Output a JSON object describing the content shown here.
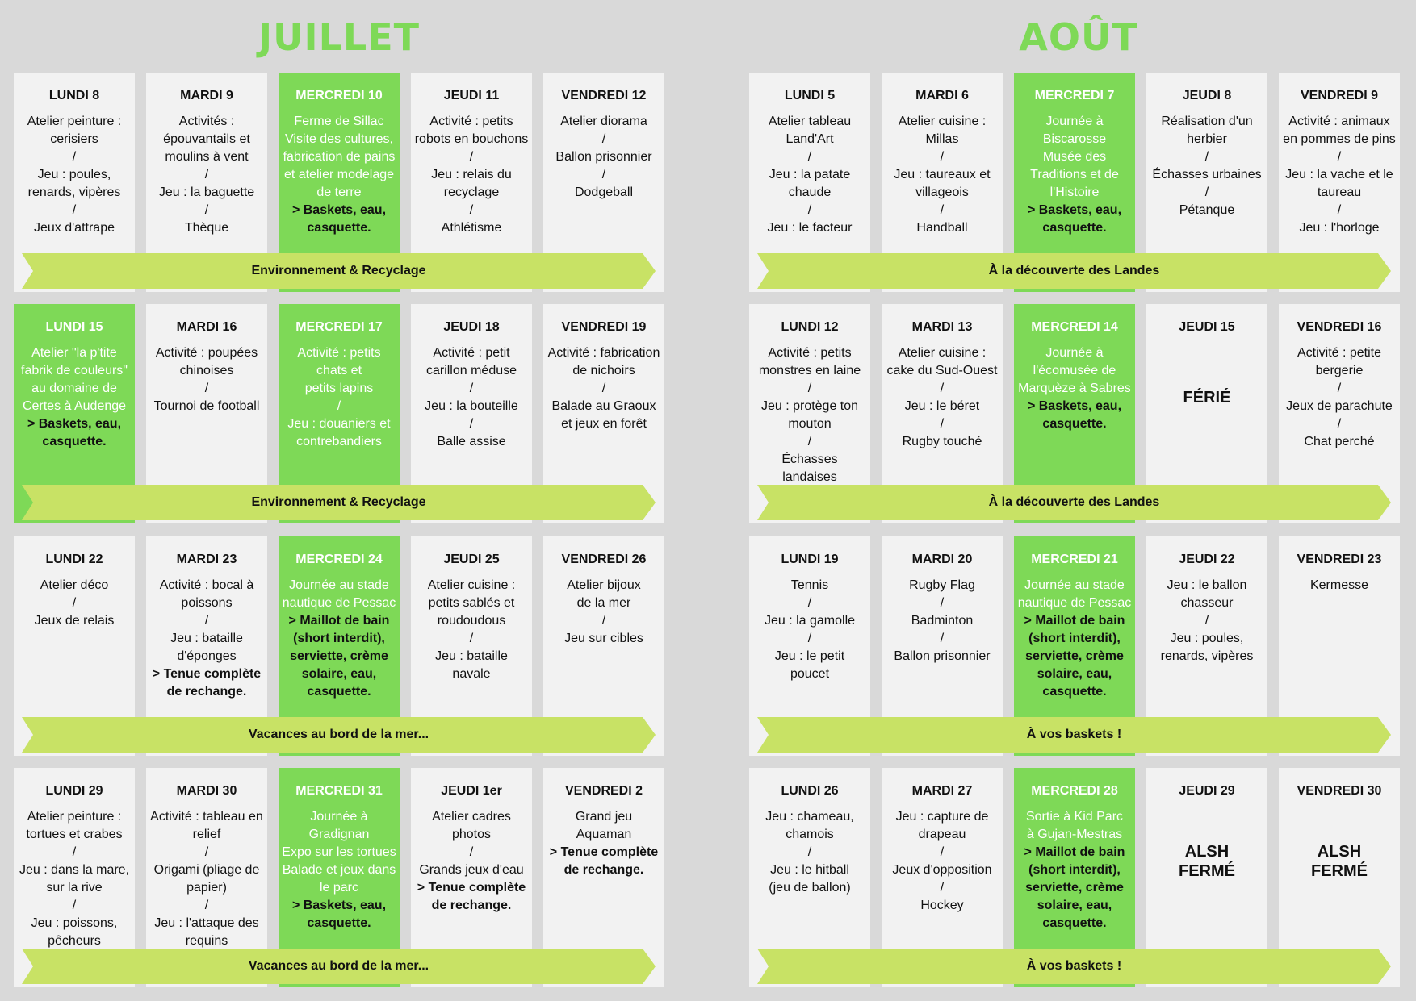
{
  "july": {
    "title": "JUILLET",
    "weeks": [
      {
        "theme": "Environnement & Recyclage",
        "days": [
          {
            "head": "LUNDI 8",
            "body": "Atelier peinture :\ncerisiers\n/\nJeu : poules,\nrenards, vipères\n/\nJeux d'attrape",
            "note": ""
          },
          {
            "head": "MARDI 9",
            "body": "Activités :\népouvantails et\nmoulins à vent\n/\nJeu : la baguette\n/\nThèque",
            "note": ""
          },
          {
            "head": "MERCREDI 10",
            "body": "Ferme de Sillac\nVisite des cultures,\nfabrication de pains\net atelier modelage\nde terre",
            "note": "> Baskets, eau,\ncasquette."
          },
          {
            "head": "JEUDI 11",
            "body": "Activité : petits\nrobots en bouchons\n/\nJeu : relais du\nrecyclage\n/\nAthlétisme",
            "note": ""
          },
          {
            "head": "VENDREDI 12",
            "body": "Atelier diorama\n/\nBallon prisonnier\n/\nDodgeball",
            "note": ""
          }
        ]
      },
      {
        "theme": "Environnement & Recyclage",
        "days": [
          {
            "head": "LUNDI 15",
            "body": "Atelier \"la p'tite\nfabrik de couleurs\"\nau domaine de\nCertes à Audenge",
            "note": "> Baskets, eau,\ncasquette."
          },
          {
            "head": "MARDI 16",
            "body": "Activité : poupées\nchinoises\n/\nTournoi de football",
            "note": ""
          },
          {
            "head": "MERCREDI 17",
            "body": "Activité : petits\nchats et\npetits lapins\n/\nJeu : douaniers et\ncontrebandiers",
            "note": ""
          },
          {
            "head": "JEUDI 18",
            "body": "Activité : petit\ncarillon méduse\n/\nJeu : la bouteille\n/\nBalle assise",
            "note": ""
          },
          {
            "head": "VENDREDI 19",
            "body": "Activité : fabrication\nde nichoirs\n/\nBalade au Graoux\net jeux en forêt",
            "note": ""
          }
        ]
      },
      {
        "theme": "Vacances au bord de la mer...",
        "days": [
          {
            "head": "LUNDI 22",
            "body": "Atelier déco\n/\nJeux de relais",
            "note": ""
          },
          {
            "head": "MARDI 23",
            "body": "Activité : bocal à\npoissons\n/\nJeu : bataille\nd'éponges",
            "note": "> Tenue complète\nde rechange."
          },
          {
            "head": "MERCREDI 24",
            "body": "Journée au stade\nnautique de Pessac",
            "note": "> Maillot de bain\n(short interdit),\nserviette, crème\nsolaire, eau,\ncasquette."
          },
          {
            "head": "JEUDI 25",
            "body": "Atelier cuisine :\npetits sablés et\nroudoudous\n/\nJeu : bataille\nnavale",
            "note": ""
          },
          {
            "head": "VENDREDI 26",
            "body": "Atelier bijoux\nde la mer\n/\nJeu sur cibles",
            "note": ""
          }
        ]
      },
      {
        "theme": "Vacances au bord de la mer...",
        "days": [
          {
            "head": "LUNDI 29",
            "body": "Atelier peinture :\ntortues et crabes\n/\nJeu : dans la mare,\nsur la rive\n/\nJeu : poissons,\npêcheurs",
            "note": ""
          },
          {
            "head": "MARDI 30",
            "body": "Activité : tableau en\nrelief\n/\nOrigami (pliage de\npapier)\n/\nJeu : l'attaque des\nrequins",
            "note": ""
          },
          {
            "head": "MERCREDI 31",
            "body": "Journée à\nGradignan\nExpo sur les tortues\nBalade et jeux dans\nle parc",
            "note": "> Baskets, eau,\ncasquette."
          },
          {
            "head": "JEUDI 1er",
            "body": "Atelier cadres\nphotos\n/\nGrands jeux d'eau",
            "note": "> Tenue complète\nde rechange."
          },
          {
            "head": "VENDREDI 2",
            "body": "Grand jeu\nAquaman",
            "note": "> Tenue complète\nde rechange."
          }
        ]
      }
    ]
  },
  "august": {
    "title": "AOÛT",
    "weeks": [
      {
        "theme": "À la découverte des Landes",
        "days": [
          {
            "head": "LUNDI 5",
            "body": "Atelier tableau\nLand'Art\n/\nJeu : la patate\nchaude\n/\nJeu : le facteur",
            "note": ""
          },
          {
            "head": "MARDI 6",
            "body": "Atelier cuisine :\nMillas\n/\nJeu : taureaux et\nvillageois\n/\nHandball",
            "note": ""
          },
          {
            "head": "MERCREDI 7",
            "body": "Journée à\nBiscarosse\nMusée des\nTraditions et de\nl'Histoire",
            "note": "> Baskets, eau,\ncasquette."
          },
          {
            "head": "JEUDI 8",
            "body": "Réalisation d'un\nherbier\n/\nÉchasses urbaines\n/\nPétanque",
            "note": ""
          },
          {
            "head": "VENDREDI 9",
            "body": "Activité : animaux\nen pommes de pins\n/\nJeu : la vache et le\ntaureau\n/\nJeu : l'horloge",
            "note": ""
          }
        ]
      },
      {
        "theme": "À la découverte des Landes",
        "days": [
          {
            "head": "LUNDI 12",
            "body": "Activité : petits\nmonstres en laine\n/\nJeu : protège ton\nmouton\n/\nÉchasses\nlandaises",
            "note": ""
          },
          {
            "head": "MARDI 13",
            "body": "Atelier cuisine :\ncake du Sud-Ouest\n/\nJeu : le béret\n/\nRugby touché",
            "note": ""
          },
          {
            "head": "MERCREDI 14",
            "body": "Journée à\nl'écomusée de\nMarquèze à Sabres",
            "note": "> Baskets, eau,\ncasquette."
          },
          {
            "head": "JEUDI 15",
            "body": "",
            "note": "",
            "big": "FÉRIÉ"
          },
          {
            "head": "VENDREDI 16",
            "body": "Activité : petite\nbergerie\n/\nJeux de parachute\n/\nChat perché",
            "note": ""
          }
        ]
      },
      {
        "theme": "À vos baskets !",
        "days": [
          {
            "head": "LUNDI 19",
            "body": "Tennis\n/\nJeu : la gamolle\n/\nJeu : le petit\npoucet",
            "note": ""
          },
          {
            "head": "MARDI 20",
            "body": "Rugby Flag\n/\nBadminton\n/\nBallon prisonnier",
            "note": ""
          },
          {
            "head": "MERCREDI 21",
            "body": "Journée au stade\nnautique de Pessac",
            "note": "> Maillot de bain\n(short interdit),\nserviette, crème\nsolaire, eau,\ncasquette."
          },
          {
            "head": "JEUDI 22",
            "body": "Jeu : le ballon\nchasseur\n/\nJeu : poules,\nrenards, vipères",
            "note": ""
          },
          {
            "head": "VENDREDI 23",
            "body": "Kermesse",
            "note": ""
          }
        ]
      },
      {
        "theme": "À vos baskets !",
        "days": [
          {
            "head": "LUNDI 26",
            "body": "Jeu : chameau,\nchamois\n/\nJeu : le hitball\n(jeu de ballon)",
            "note": ""
          },
          {
            "head": "MARDI 27",
            "body": "Jeu : capture de\ndrapeau\n/\nJeux d'opposition\n/\nHockey",
            "note": ""
          },
          {
            "head": "MERCREDI 28",
            "body": "Sortie à Kid Parc\nà Gujan-Mestras",
            "note": "> Maillot de bain\n(short interdit),\nserviette, crème\nsolaire, eau,\ncasquette."
          },
          {
            "head": "JEUDI 29",
            "body": "",
            "note": "",
            "big": "ALSH\nFERMÉ"
          },
          {
            "head": "VENDREDI 30",
            "body": "",
            "note": "",
            "big": "ALSH\nFERMÉ"
          }
        ]
      }
    ]
  },
  "colors": {
    "background": "#d9d9d9",
    "card": "#f2f2f2",
    "wednesday": "#7ed957",
    "banner": "#c8e265",
    "title": "#7ed957"
  }
}
